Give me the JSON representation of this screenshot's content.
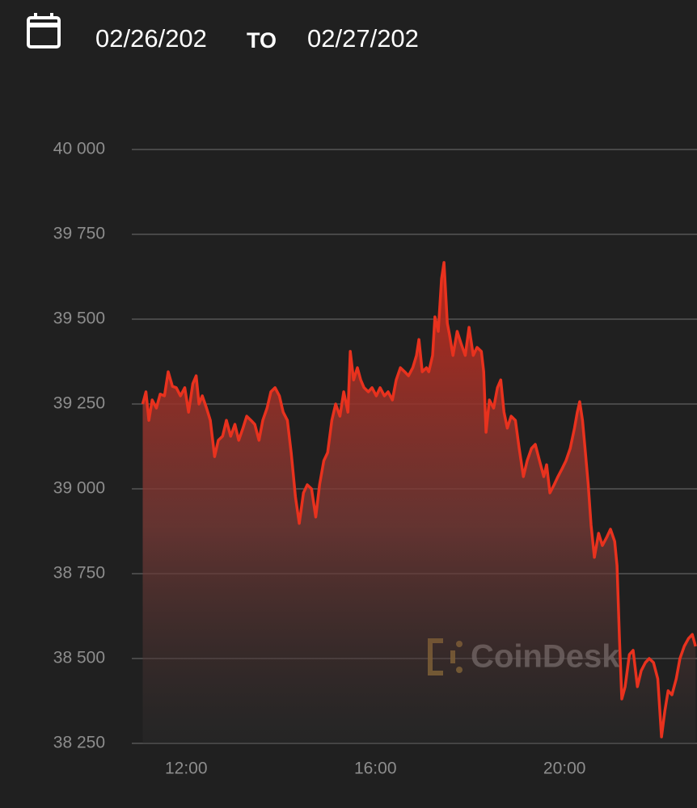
{
  "header": {
    "start_date": "02/26/202",
    "separator": "TO",
    "end_date": "02/27/202"
  },
  "watermark": "CoinDesk",
  "chart_data": {
    "type": "line",
    "color": "#e8321e",
    "grid": true,
    "area": true,
    "xlim": [
      10.85,
      22.8
    ],
    "xticks": [
      {
        "value": 12,
        "label": "12:00"
      },
      {
        "value": 16,
        "label": "16:00"
      },
      {
        "value": 20,
        "label": "20:00"
      }
    ],
    "ylim": [
      38250,
      40000
    ],
    "yticks": [
      {
        "value": 38250,
        "label": "38 250"
      },
      {
        "value": 38500,
        "label": "38 500"
      },
      {
        "value": 38750,
        "label": "38 750"
      },
      {
        "value": 39000,
        "label": "39 000"
      },
      {
        "value": 39250,
        "label": "39 250"
      },
      {
        "value": 39500,
        "label": "39 500"
      },
      {
        "value": 39750,
        "label": "39 750"
      },
      {
        "value": 40000,
        "label": "40 000"
      }
    ],
    "x": [
      11.08,
      11.15,
      11.21,
      11.28,
      11.37,
      11.45,
      11.54,
      11.62,
      11.71,
      11.79,
      11.88,
      11.97,
      12.05,
      12.14,
      12.21,
      12.27,
      12.34,
      12.43,
      12.51,
      12.6,
      12.68,
      12.77,
      12.85,
      12.94,
      13.03,
      13.11,
      13.2,
      13.28,
      13.37,
      13.45,
      13.54,
      13.62,
      13.71,
      13.79,
      13.88,
      13.97,
      14.05,
      14.14,
      14.22,
      14.31,
      14.39,
      14.48,
      14.56,
      14.65,
      14.74,
      14.82,
      14.91,
      14.99,
      15.08,
      15.16,
      15.25,
      15.33,
      15.42,
      15.47,
      15.54,
      15.62,
      15.69,
      15.76,
      15.85,
      15.93,
      16.02,
      16.1,
      16.19,
      16.27,
      16.36,
      16.44,
      16.53,
      16.62,
      16.7,
      16.79,
      16.87,
      16.92,
      16.99,
      17.08,
      17.13,
      17.21,
      17.26,
      17.33,
      17.4,
      17.45,
      17.52,
      17.57,
      17.64,
      17.73,
      17.81,
      17.9,
      17.98,
      18.07,
      18.15,
      18.24,
      18.29,
      18.34,
      18.41,
      18.5,
      18.58,
      18.65,
      18.72,
      18.79,
      18.87,
      18.96,
      19.04,
      19.13,
      19.21,
      19.3,
      19.38,
      19.47,
      19.56,
      19.62,
      19.69,
      19.78,
      19.86,
      19.95,
      20.03,
      20.12,
      20.21,
      20.27,
      20.32,
      20.38,
      20.44,
      20.5,
      20.56,
      20.63,
      20.72,
      20.8,
      20.89,
      20.97,
      21.06,
      21.11,
      21.16,
      21.21,
      21.28,
      21.37,
      21.45,
      21.54,
      21.62,
      21.71,
      21.79,
      21.88,
      21.97,
      22.05,
      22.12,
      22.19,
      22.27,
      22.36,
      22.44,
      22.53,
      22.62,
      22.7,
      22.77
    ],
    "values": [
      39250,
      39286,
      39202,
      39262,
      39238,
      39279,
      39274,
      39345,
      39302,
      39298,
      39274,
      39298,
      39226,
      39310,
      39333,
      39250,
      39274,
      39238,
      39202,
      39095,
      39143,
      39155,
      39202,
      39155,
      39190,
      39143,
      39179,
      39214,
      39202,
      39190,
      39143,
      39202,
      39238,
      39286,
      39298,
      39274,
      39226,
      39202,
      39107,
      38976,
      38898,
      38988,
      39012,
      39000,
      38917,
      39012,
      39083,
      39107,
      39202,
      39250,
      39214,
      39286,
      39226,
      39405,
      39321,
      39357,
      39321,
      39298,
      39286,
      39298,
      39274,
      39298,
      39274,
      39286,
      39262,
      39321,
      39357,
      39345,
      39333,
      39357,
      39393,
      39440,
      39345,
      39357,
      39345,
      39393,
      39507,
      39464,
      39619,
      39667,
      39488,
      39452,
      39393,
      39464,
      39429,
      39393,
      39476,
      39393,
      39417,
      39405,
      39345,
      39167,
      39262,
      39238,
      39298,
      39321,
      39226,
      39179,
      39214,
      39202,
      39119,
      39036,
      39083,
      39119,
      39131,
      39083,
      39036,
      39071,
      38988,
      39012,
      39036,
      39060,
      39083,
      39119,
      39179,
      39226,
      39257,
      39202,
      39107,
      39012,
      38893,
      38798,
      38869,
      38833,
      38857,
      38881,
      38845,
      38774,
      38559,
      38381,
      38417,
      38512,
      38524,
      38417,
      38464,
      38488,
      38500,
      38488,
      38440,
      38269,
      38345,
      38405,
      38393,
      38440,
      38500,
      38536,
      38559,
      38571,
      38536
    ]
  }
}
